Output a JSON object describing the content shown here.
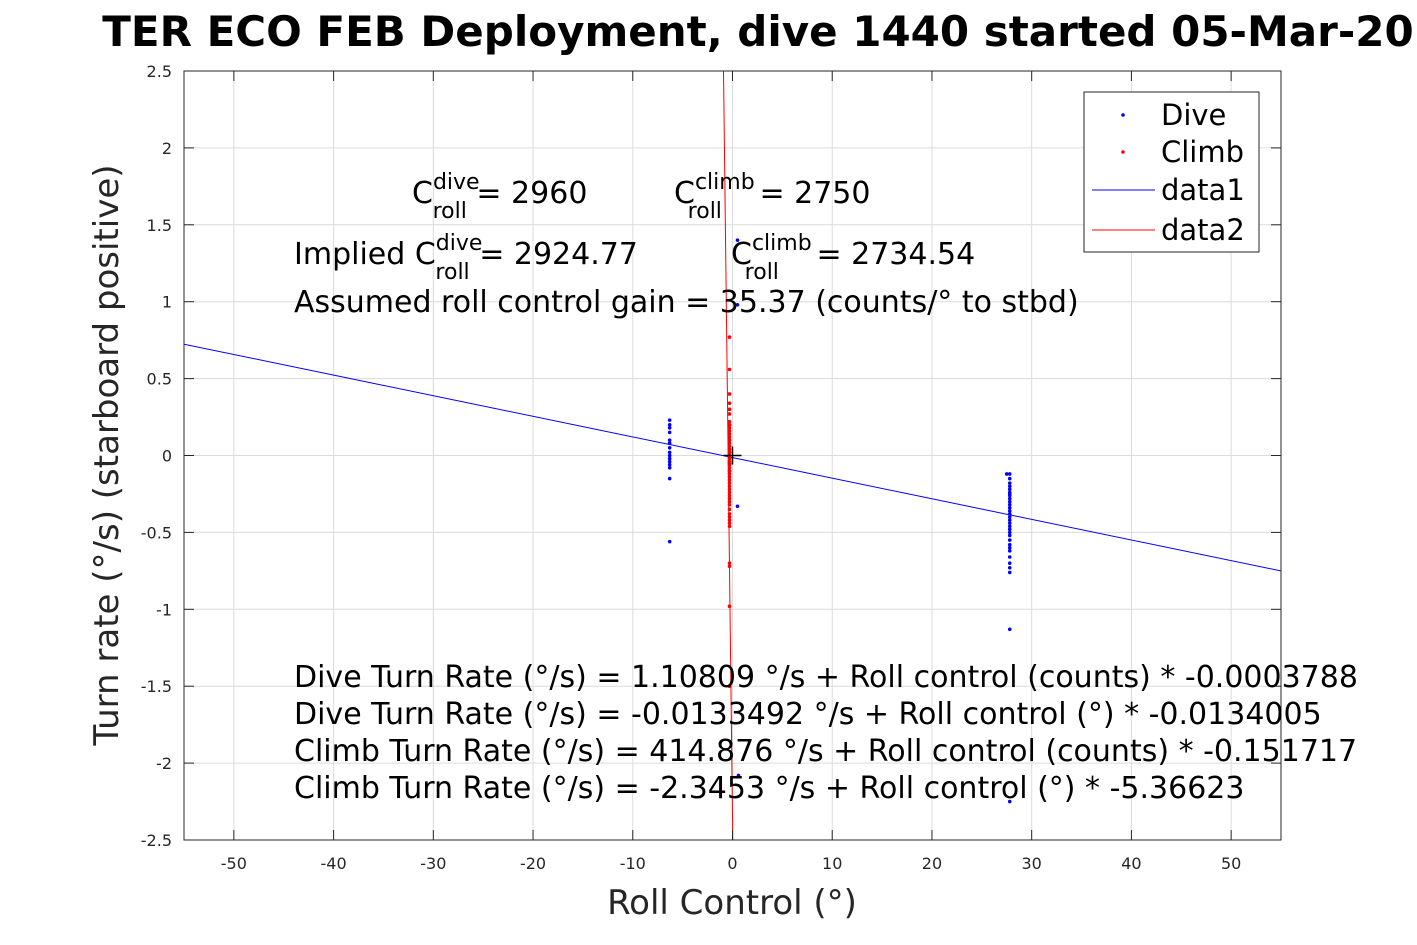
{
  "chart_data": {
    "type": "scatter",
    "title": "TER ECO FEB Deployment, dive 1440 started 05-Mar-20",
    "xlabel": "Roll Control (°)",
    "ylabel": "Turn rate (°/s) (starboard positive)",
    "xlim": [
      -55,
      55
    ],
    "ylim": [
      -2.5,
      2.5
    ],
    "xticks": [
      -50,
      -40,
      -30,
      -20,
      -10,
      0,
      10,
      20,
      30,
      40,
      50
    ],
    "yticks": [
      -2.5,
      -2,
      -1.5,
      -1,
      -0.5,
      0,
      0.5,
      1,
      1.5,
      2,
      2.5
    ],
    "xtick_labels": [
      "-50",
      "-40",
      "-30",
      "-20",
      "-10",
      "0",
      "10",
      "20",
      "30",
      "40",
      "50"
    ],
    "ytick_labels": [
      "-2.5",
      "-2",
      "-1.5",
      "-1",
      "-0.5",
      "0",
      "0.5",
      "1",
      "1.5",
      "2",
      "2.5"
    ],
    "grid": true,
    "legend_position": "top-right",
    "series": [
      {
        "name": "Dive",
        "kind": "points",
        "color": "#0000ff",
        "x": [
          -6.3,
          -6.3,
          -6.3,
          -6.3,
          -6.3,
          -6.3,
          -6.3,
          -6.3,
          -6.3,
          -6.3,
          -6.3,
          -6.3,
          -6.3,
          -6.3,
          -6.3,
          -0.3,
          -0.3,
          -0.3,
          -0.3,
          0.5,
          0.5,
          0.5,
          0.6,
          27.8,
          27.8,
          27.8,
          27.8,
          27.8,
          27.8,
          27.8,
          27.8,
          27.8,
          27.8,
          27.8,
          27.8,
          27.8,
          27.8,
          27.8,
          27.8,
          27.8,
          27.8,
          27.8,
          27.8,
          27.8,
          27.8,
          27.8,
          27.8,
          27.8,
          27.8,
          27.8,
          27.8,
          27.8,
          27.8,
          27.8,
          27.5
        ],
        "y": [
          0.23,
          0.2,
          0.18,
          0.15,
          0.1,
          0.08,
          0.05,
          0.02,
          0.0,
          -0.02,
          -0.04,
          -0.06,
          -0.08,
          -0.15,
          -0.56,
          0.2,
          0.1,
          -0.05,
          -0.1,
          1.4,
          0.98,
          -0.33,
          -2.08,
          -0.15,
          -0.18,
          -0.2,
          -0.22,
          -0.24,
          -0.26,
          -0.28,
          -0.3,
          -0.32,
          -0.34,
          -0.36,
          -0.38,
          -0.4,
          -0.42,
          -0.44,
          -0.46,
          -0.48,
          -0.5,
          -0.52,
          -0.55,
          -0.58,
          -0.6,
          -0.62,
          -0.66,
          -0.7,
          -0.73,
          -0.76,
          -1.13,
          -2.25,
          -0.12,
          -0.25,
          -0.12
        ]
      },
      {
        "name": "Climb",
        "kind": "points",
        "color": "#ff0000",
        "x": [
          -0.3,
          -0.3,
          -0.3,
          -0.3,
          -0.3,
          -0.3,
          -0.3,
          -0.3,
          -0.3,
          -0.3,
          -0.3,
          -0.3,
          -0.3,
          -0.3,
          -0.3,
          -0.3,
          -0.3,
          -0.3,
          -0.3,
          -0.3,
          -0.3,
          -0.3,
          -0.3,
          -0.3,
          -0.3,
          -0.3,
          -0.3,
          -0.3,
          -0.3,
          -0.3,
          -0.3,
          -0.3,
          -0.3,
          -0.3,
          -0.3,
          -0.3,
          -0.3,
          -0.3,
          -0.3,
          -0.3,
          -0.3,
          -0.3,
          -0.3,
          -0.3,
          -0.3,
          -0.3,
          -0.3
        ],
        "y": [
          0.77,
          0.56,
          0.4,
          0.34,
          0.3,
          0.3,
          0.27,
          0.22,
          0.2,
          0.18,
          0.16,
          0.14,
          0.12,
          0.1,
          0.08,
          0.06,
          0.04,
          0.02,
          0.0,
          -0.02,
          -0.04,
          -0.06,
          -0.08,
          -0.1,
          -0.12,
          -0.14,
          -0.16,
          -0.18,
          -0.2,
          -0.22,
          -0.24,
          -0.26,
          -0.28,
          -0.3,
          -0.32,
          -0.35,
          -0.38,
          -0.4,
          -0.42,
          -0.44,
          -0.46,
          -0.7,
          -0.72,
          -0.98,
          -1.5,
          0.02,
          -0.01
        ]
      },
      {
        "name": "data1",
        "kind": "line",
        "color": "#0000ff",
        "intercept": -0.0133492,
        "slope": -0.0134005
      },
      {
        "name": "data2",
        "kind": "line",
        "color": "#ff0000",
        "intercept": -2.3453,
        "slope": -5.36623
      }
    ],
    "marker": {
      "x": 0,
      "y": 0,
      "symbol": "+"
    },
    "annotations": {
      "c_dive_prefix": "C",
      "c_dive_sup": "dive",
      "c_dive_sub": "roll",
      "c_dive_value": " = 2960",
      "c_climb_prefix": "C",
      "c_climb_sup": "climb",
      "c_climb_sub": "roll",
      "c_climb_value": " = 2750",
      "implied_prefix": "Implied C",
      "implied_dive_sup": "dive",
      "implied_dive_sub": "roll",
      "implied_dive_value": " = 2924.77",
      "implied_climb_prefix": "C",
      "implied_climb_sup": "climb",
      "implied_climb_sub": "roll",
      "implied_climb_value": " = 2734.54",
      "gain": "Assumed roll control gain = 35.37 (counts/° to stbd)",
      "eq1": "Dive Turn Rate (°/s) = 1.10809 °/s + Roll control (counts) * -0.0003788",
      "eq2": "Dive Turn Rate (°/s) = -0.0133492 °/s + Roll control (°) * -0.0134005",
      "eq3": "Climb Turn Rate (°/s) = 414.876 °/s + Roll control (counts) * -0.151717",
      "eq4": "Climb Turn Rate (°/s) = -2.3453 °/s + Roll control (°) * -5.36623"
    }
  }
}
